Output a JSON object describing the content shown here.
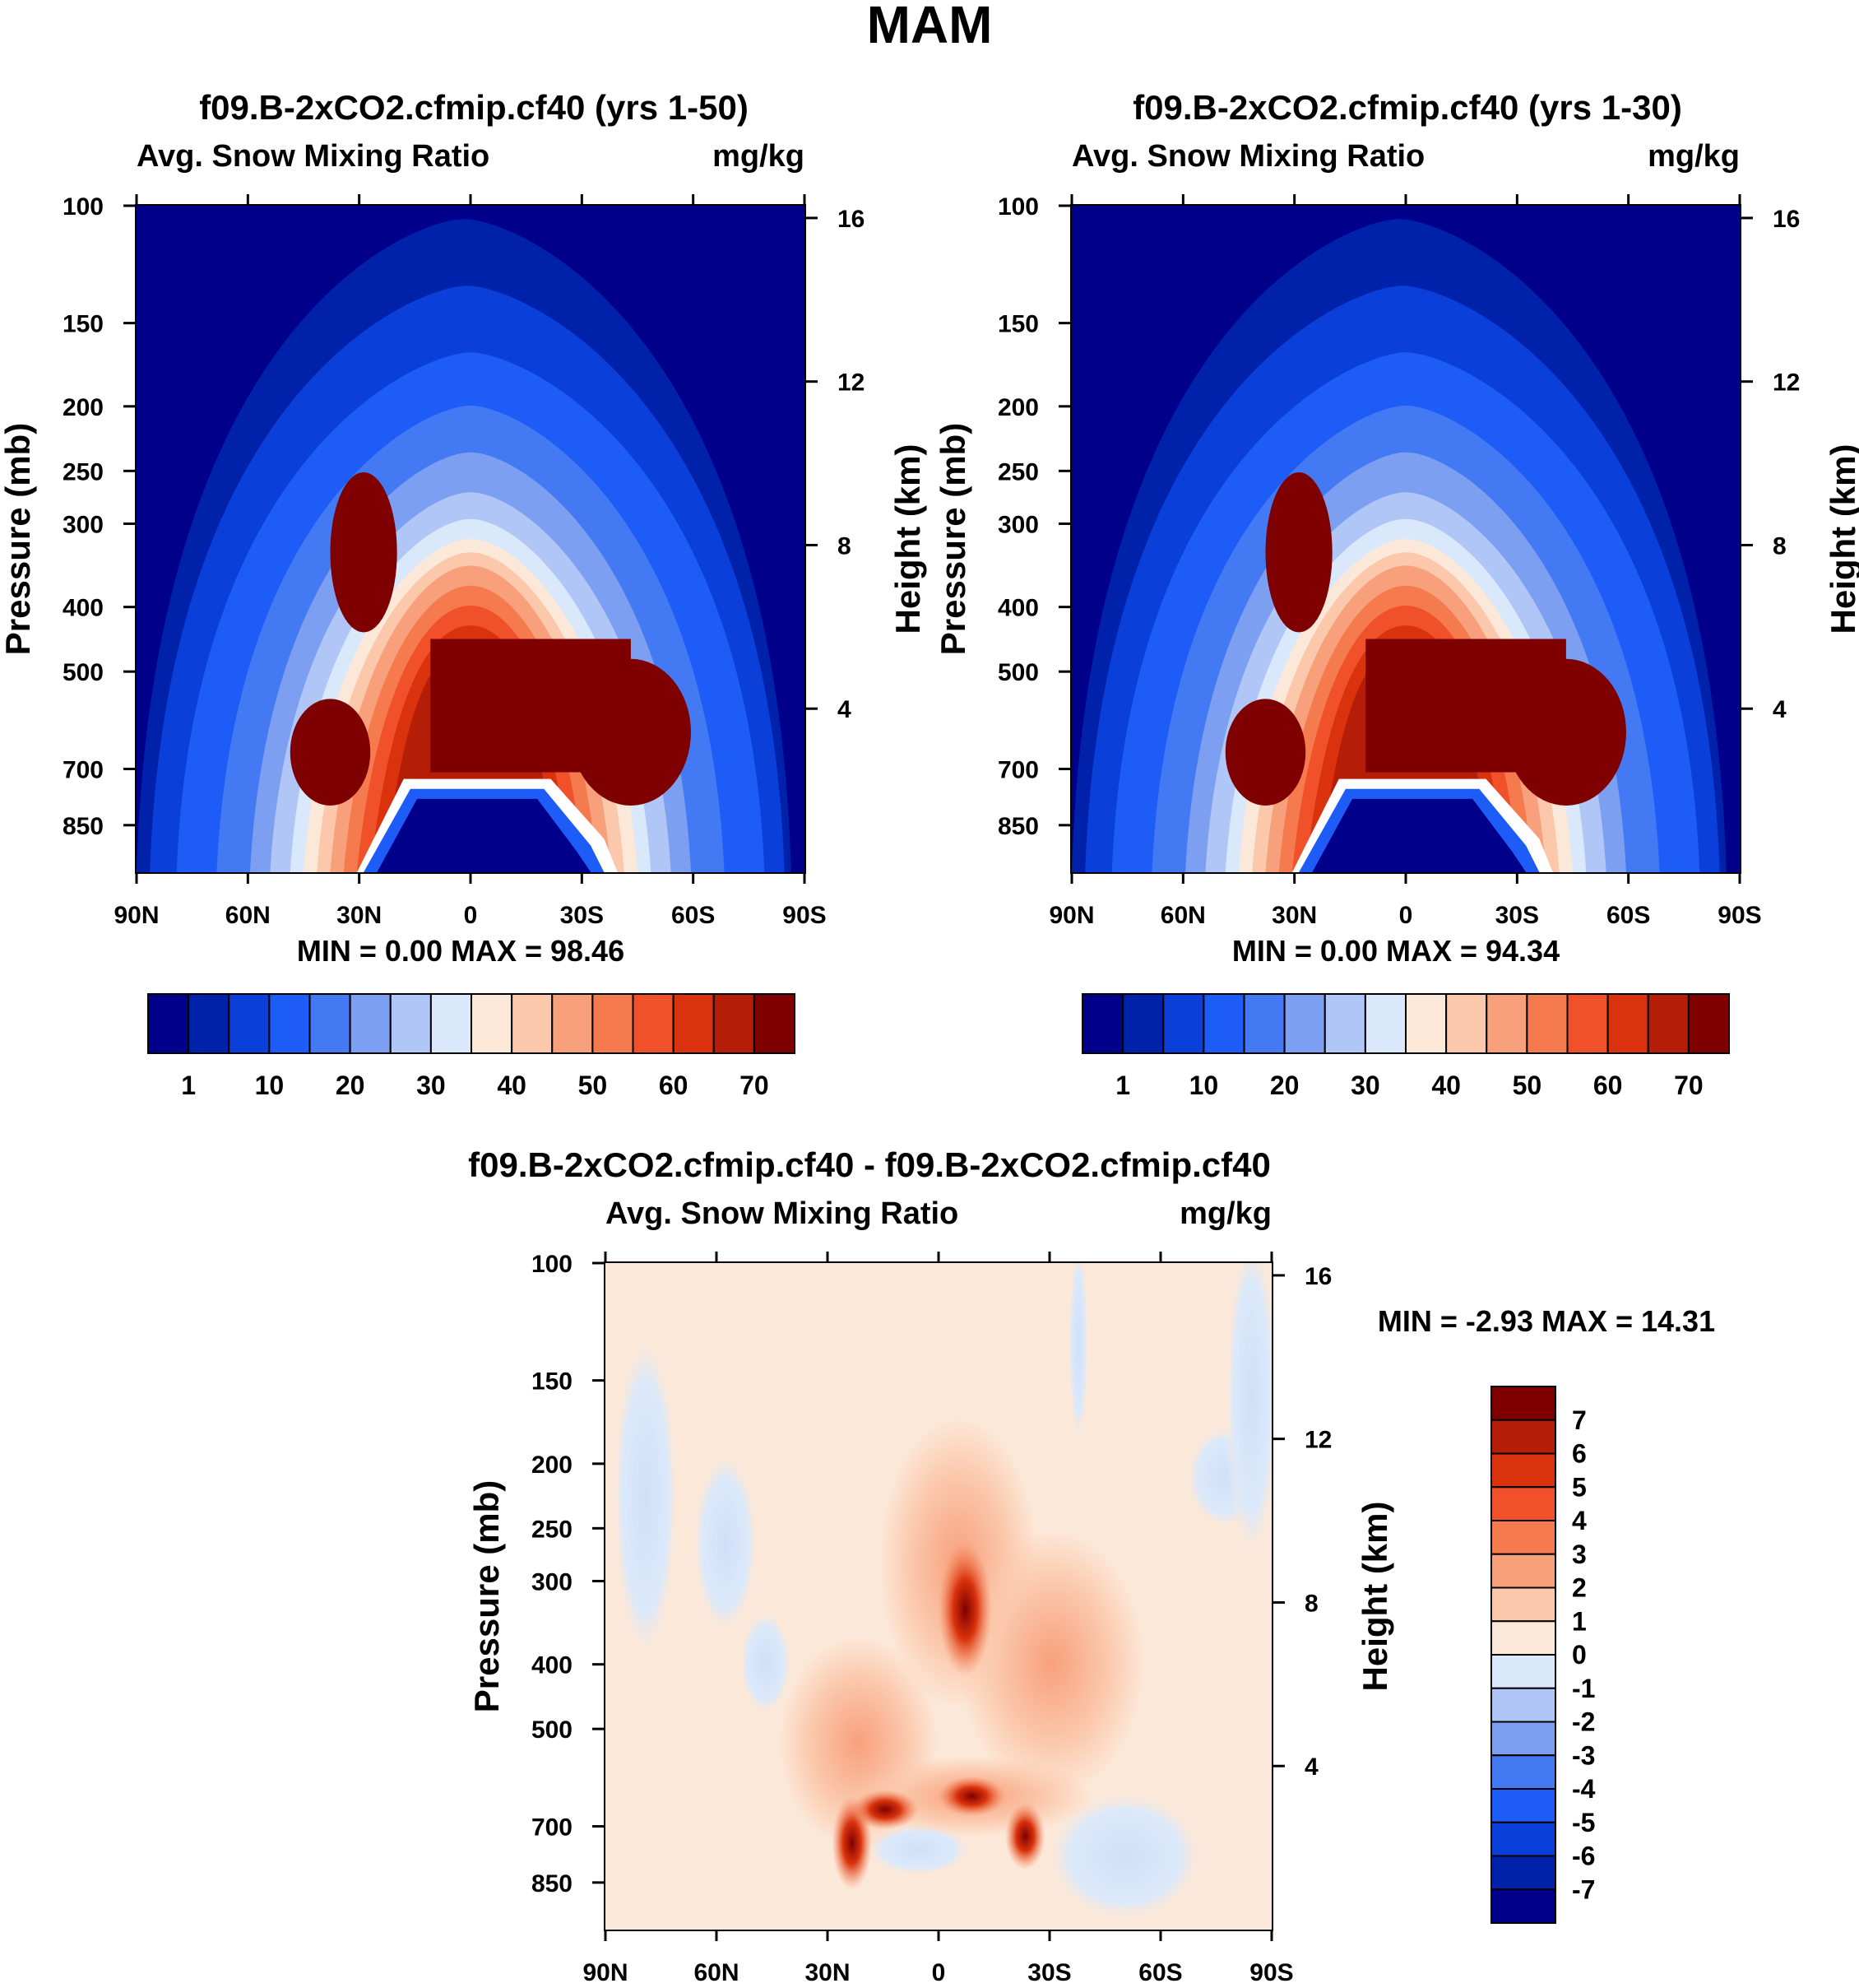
{
  "page_title": "MAM",
  "chart_data": [
    {
      "id": "panel1",
      "type": "contour",
      "title": "f09.B-2xCO2.cfmip.cf40 (yrs 1-50)",
      "left_label": "Avg. Snow Mixing Ratio",
      "right_label": "mg/kg",
      "ylabel": "Pressure (mb)",
      "ylabel_right": "Height (km)",
      "x_ticks": [
        "90N",
        "60N",
        "30N",
        "0",
        "30S",
        "60S",
        "90S"
      ],
      "y_ticks": [
        "100",
        "150",
        "200",
        "250",
        "300",
        "400",
        "500",
        "700",
        "850"
      ],
      "y_ticks_right": [
        "16",
        "12",
        "8",
        "4"
      ],
      "min_label": "MIN =",
      "min_value": "0.00",
      "max_label": "MAX =",
      "max_value": "98.46",
      "colorbar_labels": [
        "1",
        "10",
        "20",
        "30",
        "40",
        "50",
        "60",
        "70"
      ]
    },
    {
      "id": "panel2",
      "type": "contour",
      "title": "f09.B-2xCO2.cfmip.cf40 (yrs 1-30)",
      "left_label": "Avg. Snow Mixing Ratio",
      "right_label": "mg/kg",
      "ylabel": "Pressure (mb)",
      "ylabel_right": "Height (km)",
      "x_ticks": [
        "90N",
        "60N",
        "30N",
        "0",
        "30S",
        "60S",
        "90S"
      ],
      "y_ticks": [
        "100",
        "150",
        "200",
        "250",
        "300",
        "400",
        "500",
        "700",
        "850"
      ],
      "y_ticks_right": [
        "16",
        "12",
        "8",
        "4"
      ],
      "min_label": "MIN =",
      "min_value": "0.00",
      "max_label": "MAX =",
      "max_value": "94.34",
      "colorbar_labels": [
        "1",
        "10",
        "20",
        "30",
        "40",
        "50",
        "60",
        "70"
      ]
    },
    {
      "id": "panel3",
      "type": "contour",
      "title": "f09.B-2xCO2.cfmip.cf40 - f09.B-2xCO2.cfmip.cf40",
      "left_label": "Avg. Snow Mixing Ratio",
      "right_label": "mg/kg",
      "ylabel": "Pressure (mb)",
      "ylabel_right": "Height (km)",
      "x_ticks": [
        "90N",
        "60N",
        "30N",
        "0",
        "30S",
        "60S",
        "90S"
      ],
      "y_ticks": [
        "100",
        "150",
        "200",
        "250",
        "300",
        "400",
        "500",
        "700",
        "850"
      ],
      "y_ticks_right": [
        "16",
        "12",
        "8",
        "4"
      ],
      "min_label": "MIN =",
      "min_value": "-2.93",
      "max_label": "MAX =",
      "max_value": "14.31",
      "colorbar_labels": [
        "7",
        "6",
        "5",
        "4",
        "3",
        "2",
        "1",
        "0",
        "-1",
        "-2",
        "-3",
        "-4",
        "-5",
        "-6",
        "-7"
      ]
    }
  ],
  "palette": [
    "#00008b",
    "#0022aa",
    "#0b3fd9",
    "#1e5cf7",
    "#4479f4",
    "#7d9ff2",
    "#b0c6f7",
    "#d9e8fb",
    "#fce8d8",
    "#fbc8ac",
    "#f8a07c",
    "#f57a4e",
    "#f0502a",
    "#d9320c",
    "#b41e08",
    "#7e0000"
  ]
}
